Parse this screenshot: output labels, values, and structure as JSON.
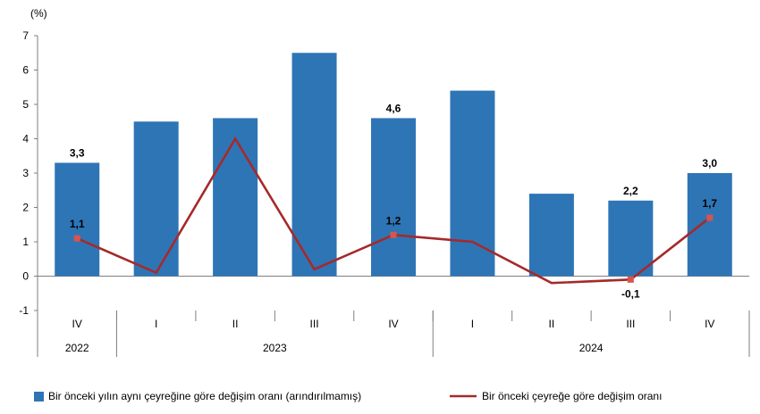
{
  "chart_data": {
    "type": "bar",
    "unit_label": "(%)",
    "categories": [
      "IV",
      "I",
      "II",
      "III",
      "IV",
      "I",
      "II",
      "III",
      "IV"
    ],
    "years": [
      {
        "label": "2022",
        "start": 0,
        "end": 0
      },
      {
        "label": "2023",
        "start": 1,
        "end": 4
      },
      {
        "label": "2024",
        "start": 5,
        "end": 8
      }
    ],
    "ylim": [
      -1,
      7
    ],
    "yticks": [
      -1,
      0,
      1,
      2,
      3,
      4,
      5,
      6,
      7
    ],
    "series": [
      {
        "name": "Bir önceki yılın aynı çeyreğine göre değişim oranı (arındırılmamış)",
        "type": "bar",
        "color": "#2e75b6",
        "values": [
          3.3,
          4.5,
          4.6,
          6.5,
          4.6,
          5.4,
          2.4,
          2.2,
          3.0
        ],
        "labels": [
          "3,3",
          "",
          "",
          "",
          "4,6",
          "",
          "",
          "2,2",
          "3,0"
        ]
      },
      {
        "name": "Bir önceki çeyreğe göre değişim oranı",
        "type": "line",
        "color": "#a52a2a",
        "values": [
          1.1,
          0.1,
          4.0,
          0.2,
          1.2,
          1.0,
          -0.2,
          -0.1,
          1.7
        ],
        "labels": [
          "1,1",
          "",
          "",
          "",
          "1,2",
          "",
          "",
          "-0,1",
          "1,7"
        ]
      }
    ]
  }
}
